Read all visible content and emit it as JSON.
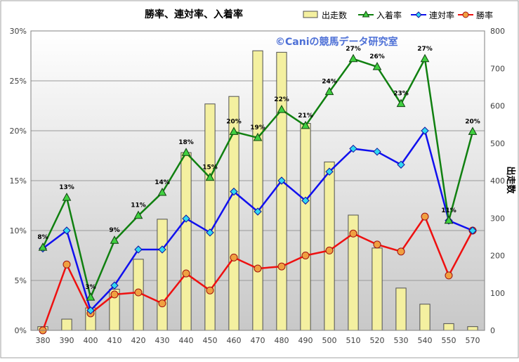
{
  "chart_data": {
    "type": "bar+line",
    "title": "勝率、連対率、入着率",
    "watermark": "©Caniの競馬データ研究室",
    "xlabel": "",
    "ylabel_left": "",
    "ylabel_right": "出走数",
    "categories": [
      "380",
      "390",
      "400",
      "410",
      "420",
      "430",
      "440",
      "450",
      "460",
      "470",
      "480",
      "490",
      "500",
      "510",
      "520",
      "530",
      "540",
      "550",
      "570"
    ],
    "ylim_left": [
      0,
      0.3
    ],
    "ylim_right": [
      0,
      800
    ],
    "yticks_left": [
      "0%",
      "5%",
      "10%",
      "15%",
      "20%",
      "25%",
      "30%"
    ],
    "yticks_right": [
      "0",
      "100",
      "200",
      "300",
      "400",
      "500",
      "600",
      "700",
      "800"
    ],
    "legend_position": "top-right",
    "grid": true,
    "series": [
      {
        "name": "出走数",
        "kind": "bar",
        "axis": "right",
        "color": "#f4f0a0",
        "values": [
          10,
          30,
          60,
          110,
          190,
          297,
          475,
          605,
          625,
          747,
          743,
          553,
          450,
          308,
          220,
          113,
          70,
          18,
          10
        ]
      },
      {
        "name": "入着率",
        "kind": "line",
        "axis": "left",
        "color": "#108010",
        "marker": "triangle",
        "values": [
          0.083,
          0.133,
          0.033,
          0.09,
          0.115,
          0.138,
          0.178,
          0.153,
          0.199,
          0.193,
          0.221,
          0.205,
          0.239,
          0.272,
          0.264,
          0.227,
          0.272,
          0.11,
          0.199
        ],
        "labels": [
          "8%",
          "13%",
          "3%",
          "9%",
          "11%",
          "14%",
          "18%",
          "15%",
          "20%",
          "19%",
          "22%",
          "21%",
          "24%",
          "27%",
          "26%",
          "23%",
          "27%",
          "11%",
          "20%"
        ]
      },
      {
        "name": "連対率",
        "kind": "line",
        "axis": "left",
        "color": "#1010ee",
        "marker": "diamond",
        "values": [
          0.082,
          0.1,
          0.02,
          0.045,
          0.081,
          0.081,
          0.112,
          0.098,
          0.139,
          0.119,
          0.15,
          0.13,
          0.159,
          0.182,
          0.179,
          0.166,
          0.2,
          0.11,
          0.1
        ]
      },
      {
        "name": "勝率",
        "kind": "line",
        "axis": "left",
        "color": "#ee1010",
        "marker": "circle",
        "values": [
          0.0,
          0.066,
          0.017,
          0.036,
          0.038,
          0.027,
          0.057,
          0.04,
          0.073,
          0.062,
          0.064,
          0.075,
          0.08,
          0.097,
          0.086,
          0.079,
          0.114,
          0.055,
          0.1
        ]
      }
    ]
  },
  "colors": {
    "plot_bg_top": "#ffffff",
    "plot_bg_bottom": "#c8c8c8",
    "grid": "#9a9a9a",
    "frame": "#808080",
    "bar_stroke": "#505050",
    "tick_text": "#404040",
    "watermark": "#4c6fd6"
  }
}
